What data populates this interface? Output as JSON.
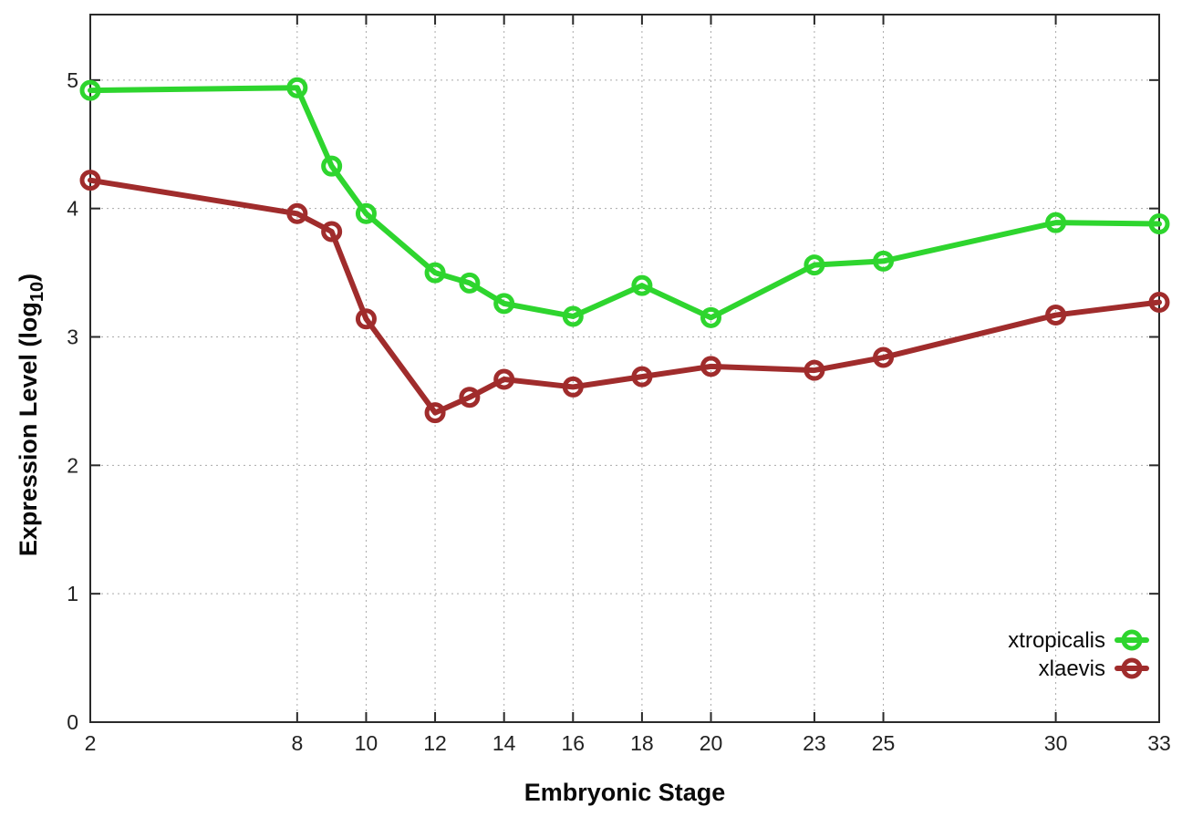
{
  "chart_data": {
    "type": "line",
    "title": "",
    "xlabel": "Embryonic Stage",
    "ylabel": {
      "pre": "Expression Level (log",
      "sub": "10",
      "post": ")"
    },
    "x": [
      2,
      8,
      9,
      10,
      12,
      13,
      14,
      16,
      18,
      20,
      23,
      25,
      30,
      33
    ],
    "series": [
      {
        "name": "xtropicalis",
        "color": "#2ed52e",
        "values": [
          4.92,
          4.94,
          4.33,
          3.96,
          3.5,
          3.42,
          3.26,
          3.16,
          3.4,
          3.15,
          3.56,
          3.59,
          3.89,
          3.88
        ]
      },
      {
        "name": "xlaevis",
        "color": "#a02c2c",
        "values": [
          4.22,
          3.96,
          3.82,
          3.14,
          2.41,
          2.53,
          2.67,
          2.61,
          2.69,
          2.77,
          2.74,
          2.84,
          3.17,
          3.27
        ]
      }
    ],
    "xlim": [
      2,
      33
    ],
    "ylim": [
      0,
      5.51
    ],
    "x_ticks": [
      2,
      8,
      10,
      12,
      14,
      16,
      18,
      20,
      23,
      25,
      30,
      33
    ],
    "y_ticks": [
      0,
      1,
      2,
      3,
      4,
      5
    ],
    "grid": true,
    "legend_position": "inside-right-lower",
    "marker": "open-circle",
    "background_color": "#ffffff",
    "axis_color": "#2a2a2a",
    "grid_color": "#aaaaaa"
  }
}
